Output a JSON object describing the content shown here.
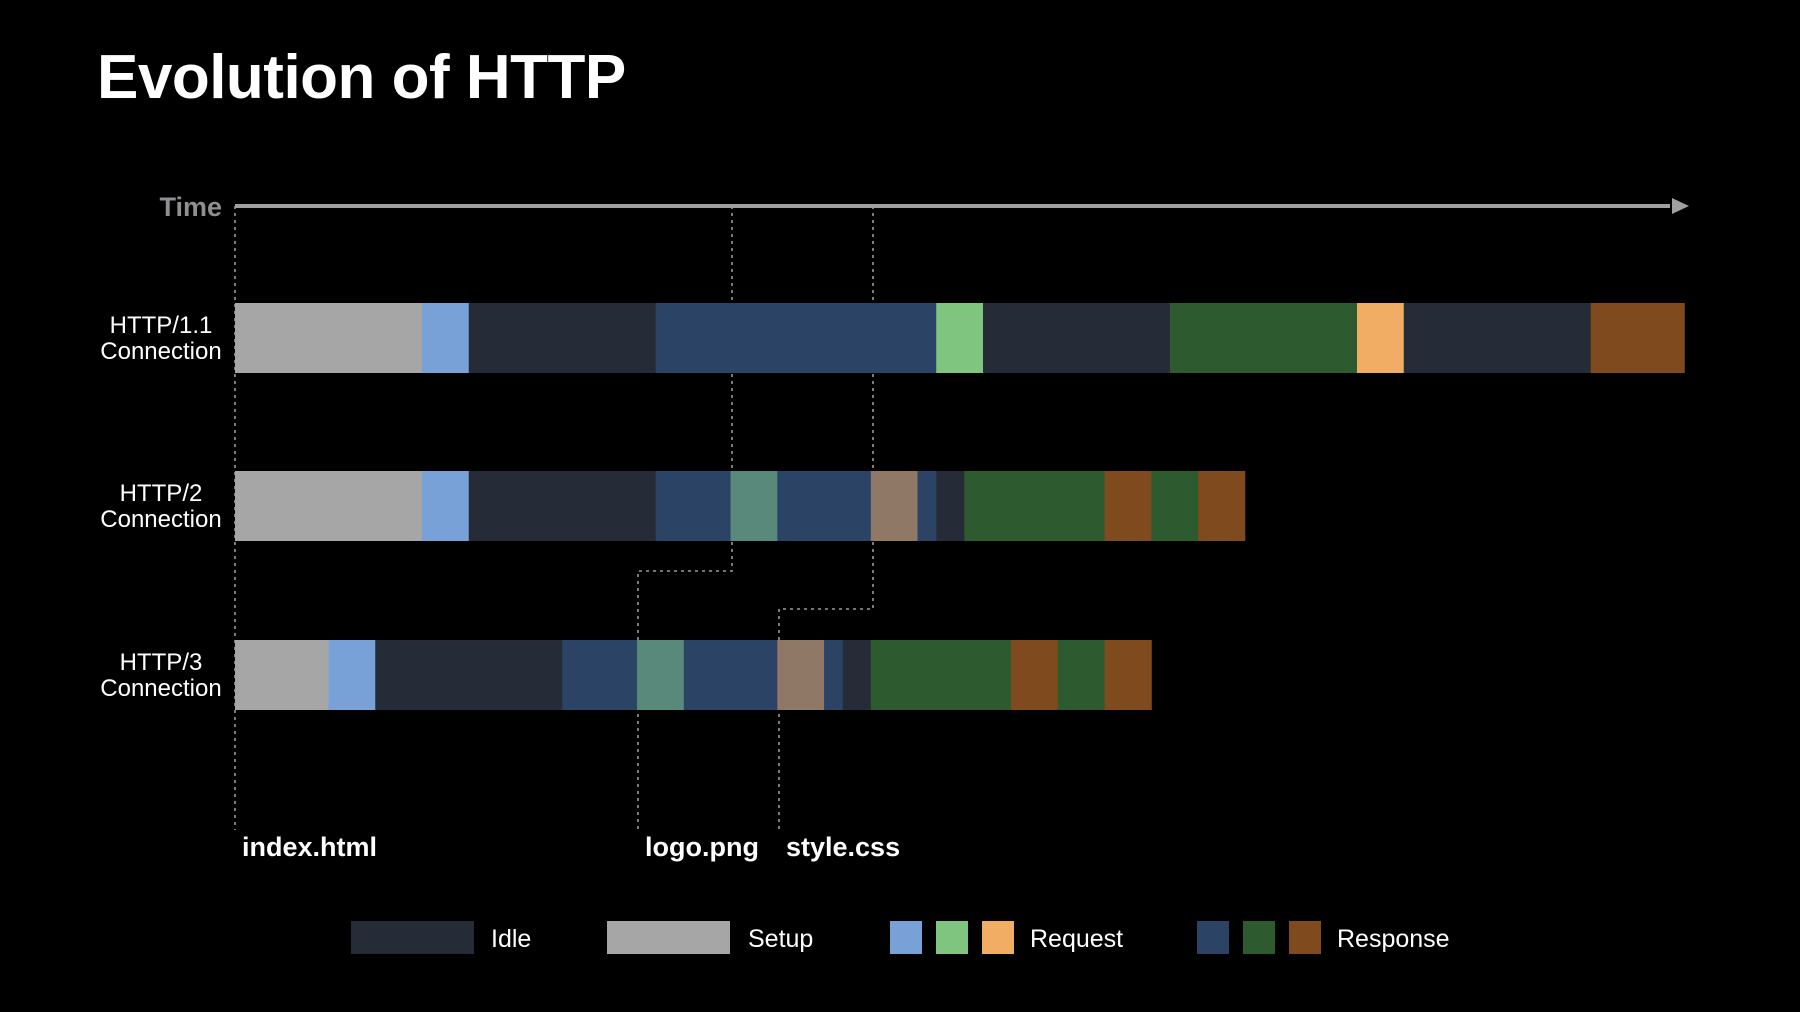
{
  "title": "Evolution of HTTP",
  "axis": {
    "label": "Time"
  },
  "colors": {
    "idle": "#262c37",
    "setup": "#a6a6a6",
    "req_blue": "#78a1d8",
    "req_green": "#7fc47f",
    "req_orange": "#f2ad65",
    "resp_blue": "#2b4466",
    "resp_green": "#2d5a2f",
    "resp_brown": "#7f4a1e",
    "teal": "#58897a",
    "tan": "#8f7866",
    "axis": "#a0a0a0",
    "guide": "#9a9a9a"
  },
  "rows": [
    {
      "id": "http11",
      "label_line1": "HTTP/1.1",
      "label_line2": "Connection",
      "segments": [
        {
          "start": 0,
          "end": 2,
          "color": "setup"
        },
        {
          "start": 2,
          "end": 2.5,
          "color": "req_blue"
        },
        {
          "start": 2.5,
          "end": 4.5,
          "color": "idle"
        },
        {
          "start": 4.5,
          "end": 7.5,
          "color": "resp_blue"
        },
        {
          "start": 7.5,
          "end": 8,
          "color": "req_green"
        },
        {
          "start": 8,
          "end": 10,
          "color": "idle"
        },
        {
          "start": 10,
          "end": 12,
          "color": "resp_green"
        },
        {
          "start": 12,
          "end": 12.5,
          "color": "req_orange"
        },
        {
          "start": 12.5,
          "end": 14.5,
          "color": "idle"
        },
        {
          "start": 14.5,
          "end": 15.5,
          "color": "resp_brown"
        }
      ]
    },
    {
      "id": "http2",
      "label_line1": "HTTP/2",
      "label_line2": "Connection",
      "segments": [
        {
          "start": 0,
          "end": 2,
          "color": "setup"
        },
        {
          "start": 2,
          "end": 2.5,
          "color": "req_blue"
        },
        {
          "start": 2.5,
          "end": 4.5,
          "color": "idle"
        },
        {
          "start": 4.5,
          "end": 5.3,
          "color": "resp_blue"
        },
        {
          "start": 5.3,
          "end": 5.8,
          "color": "teal"
        },
        {
          "start": 5.8,
          "end": 6.8,
          "color": "resp_blue"
        },
        {
          "start": 6.8,
          "end": 7.3,
          "color": "tan"
        },
        {
          "start": 7.3,
          "end": 7.5,
          "color": "resp_blue"
        },
        {
          "start": 7.5,
          "end": 7.8,
          "color": "idle"
        },
        {
          "start": 7.8,
          "end": 9.3,
          "color": "resp_green"
        },
        {
          "start": 9.3,
          "end": 9.8,
          "color": "resp_brown"
        },
        {
          "start": 9.8,
          "end": 10.3,
          "color": "resp_green"
        },
        {
          "start": 10.3,
          "end": 10.8,
          "color": "resp_brown"
        }
      ]
    },
    {
      "id": "http3",
      "label_line1": "HTTP/3",
      "label_line2": "Connection",
      "segments": [
        {
          "start": 0,
          "end": 1,
          "color": "setup"
        },
        {
          "start": 1,
          "end": 1.5,
          "color": "req_blue"
        },
        {
          "start": 1.5,
          "end": 3.5,
          "color": "idle"
        },
        {
          "start": 3.5,
          "end": 4.3,
          "color": "resp_blue"
        },
        {
          "start": 4.3,
          "end": 4.8,
          "color": "teal"
        },
        {
          "start": 4.8,
          "end": 5.8,
          "color": "resp_blue"
        },
        {
          "start": 5.8,
          "end": 6.3,
          "color": "tan"
        },
        {
          "start": 6.3,
          "end": 6.5,
          "color": "resp_blue"
        },
        {
          "start": 6.5,
          "end": 6.8,
          "color": "idle"
        },
        {
          "start": 6.8,
          "end": 8.3,
          "color": "resp_green"
        },
        {
          "start": 8.3,
          "end": 8.8,
          "color": "resp_brown"
        },
        {
          "start": 8.8,
          "end": 9.3,
          "color": "resp_green"
        },
        {
          "start": 9.3,
          "end": 9.8,
          "color": "resp_brown"
        }
      ]
    }
  ],
  "files": [
    {
      "id": "index",
      "label": "index.html"
    },
    {
      "id": "logo",
      "label": "logo.png"
    },
    {
      "id": "style",
      "label": "style.css"
    }
  ],
  "legend": [
    {
      "id": "idle",
      "label": "Idle",
      "swatches": [
        "idle"
      ]
    },
    {
      "id": "setup",
      "label": "Setup",
      "swatches": [
        "setup"
      ]
    },
    {
      "id": "request",
      "label": "Request",
      "swatches": [
        "req_blue",
        "req_green",
        "req_orange"
      ]
    },
    {
      "id": "response",
      "label": "Response",
      "swatches": [
        "resp_blue",
        "resp_green",
        "resp_brown"
      ]
    }
  ]
}
